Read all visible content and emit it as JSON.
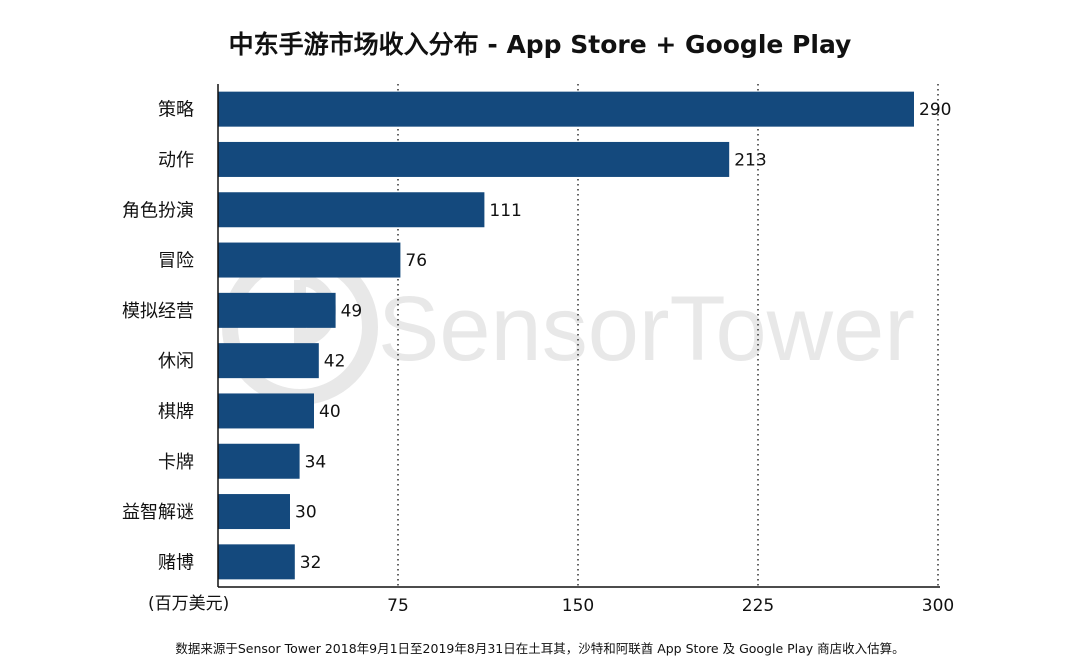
{
  "chart_data": {
    "type": "bar",
    "orientation": "horizontal",
    "title": "中东手游市场收入分布 - App Store + Google Play",
    "categories": [
      "策略",
      "动作",
      "角色扮演",
      "冒险",
      "模拟经营",
      "休闲",
      "棋牌",
      "卡牌",
      "益智解谜",
      "赌博"
    ],
    "values": [
      290,
      213,
      111,
      76,
      49,
      42,
      40,
      34,
      30,
      32
    ],
    "xlabel": "(百万美元)",
    "ylabel": "",
    "xlim": [
      0,
      300
    ],
    "xticks": [
      75,
      150,
      225,
      300
    ],
    "grid": "vertical-dotted",
    "bar_color": "#14497d",
    "footnote": "数据来源于Sensor Tower 2018年9月1日至2019年8月31日在土耳其，沙特和阿联酋 App Store 及 Google Play 商店收入估算。",
    "watermark": "SensorTower"
  }
}
